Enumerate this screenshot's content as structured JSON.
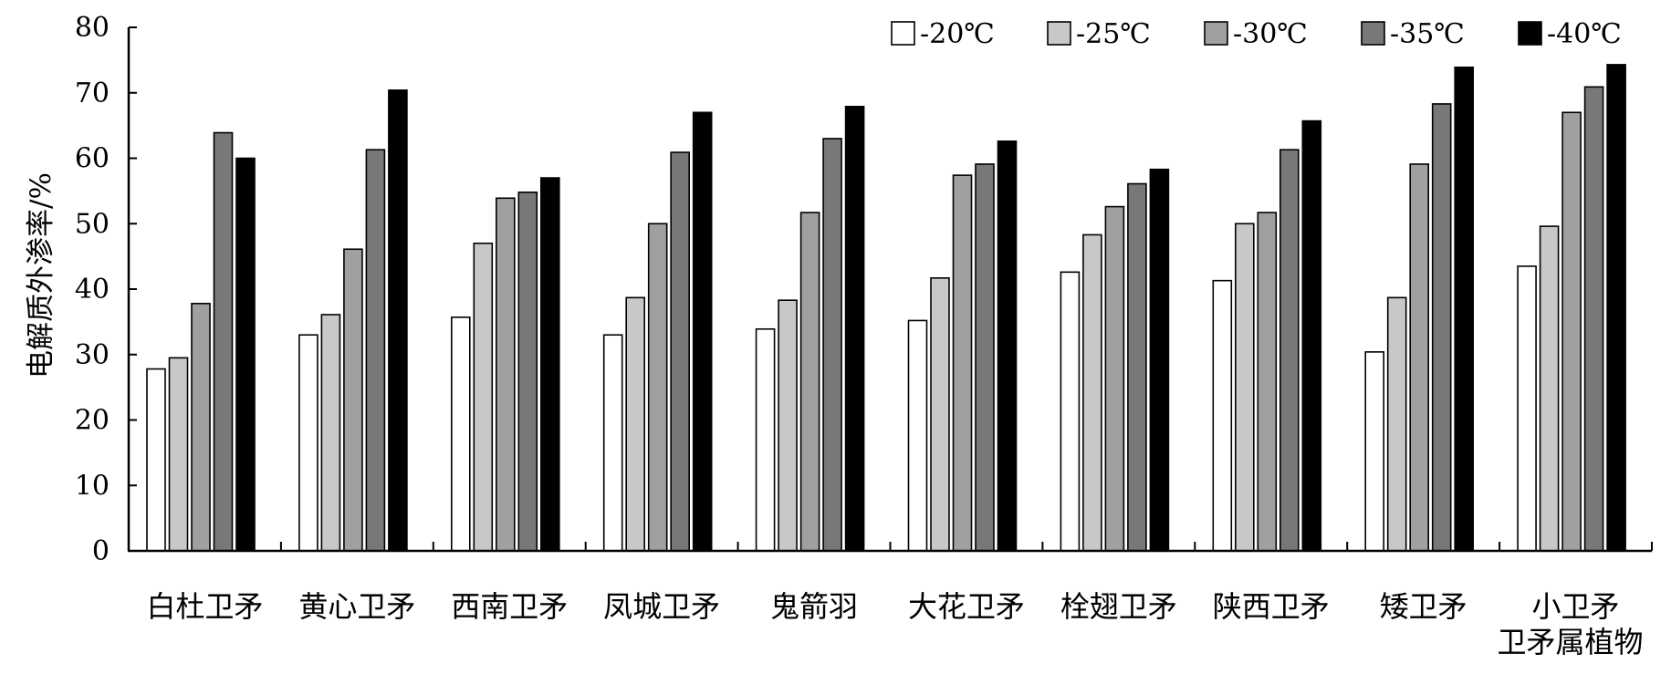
{
  "chart_data": {
    "type": "bar",
    "title": "",
    "xlabel": "",
    "ylabel": "电解质外渗率/%",
    "ylim": [
      0,
      80
    ],
    "yticks": [
      0,
      10,
      20,
      30,
      40,
      50,
      60,
      70,
      80
    ],
    "grid": false,
    "legend_position": "top-right",
    "categories": [
      [
        "白杜卫矛"
      ],
      [
        "黄心卫矛"
      ],
      [
        "西南卫矛"
      ],
      [
        "凤城卫矛"
      ],
      [
        "鬼箭羽"
      ],
      [
        "大花卫矛"
      ],
      [
        "栓翅卫矛"
      ],
      [
        "陕西卫矛"
      ],
      [
        "矮卫矛"
      ],
      [
        "小卫矛",
        "卫矛属植物"
      ]
    ],
    "series": [
      {
        "name": "-20℃",
        "color": "#ffffff",
        "values": [
          27.8,
          33.0,
          35.7,
          33.0,
          33.9,
          35.2,
          42.6,
          41.3,
          30.4,
          43.5
        ]
      },
      {
        "name": "-25℃",
        "color": "#c8c8c8",
        "values": [
          29.5,
          36.1,
          47.0,
          38.7,
          38.3,
          41.7,
          48.3,
          50.0,
          38.7,
          49.6
        ]
      },
      {
        "name": "-30℃",
        "color": "#a0a0a0",
        "values": [
          37.8,
          46.1,
          53.9,
          50.0,
          51.7,
          57.4,
          52.6,
          51.7,
          59.1,
          67.0
        ]
      },
      {
        "name": "-35℃",
        "color": "#787878",
        "values": [
          63.9,
          61.3,
          54.8,
          60.9,
          63.0,
          59.1,
          56.1,
          61.3,
          68.3,
          70.9
        ]
      },
      {
        "name": "-40℃",
        "color": "#000000",
        "values": [
          60.0,
          70.4,
          57.0,
          67.0,
          67.9,
          62.6,
          58.3,
          65.7,
          73.9,
          74.3
        ]
      }
    ]
  }
}
